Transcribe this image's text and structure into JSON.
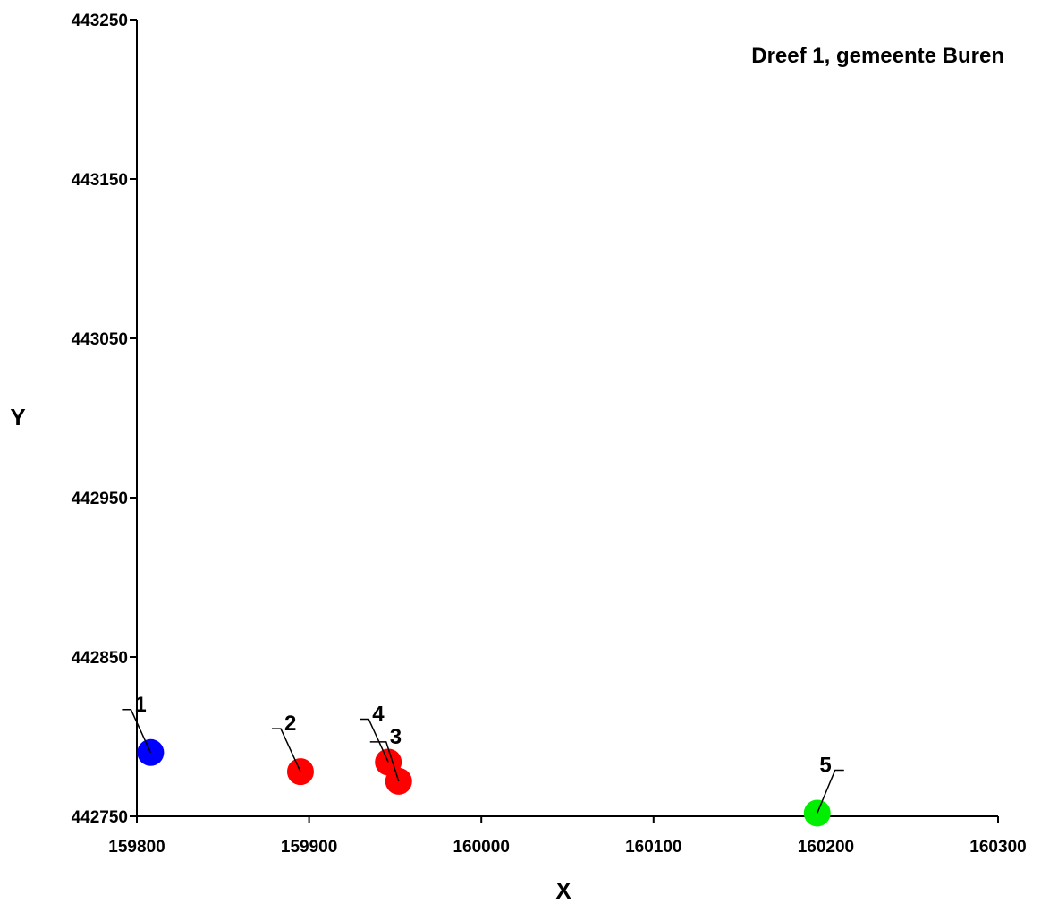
{
  "chart_data": {
    "type": "scatter",
    "title": "Dreef 1, gemeente Buren",
    "xlabel": "X",
    "ylabel": "Y",
    "xlim": [
      159800,
      160300
    ],
    "ylim": [
      442750,
      443250
    ],
    "xticks": [
      159800,
      159900,
      160000,
      160100,
      160200,
      160300
    ],
    "yticks": [
      442750,
      442850,
      442950,
      443050,
      443150,
      443250
    ],
    "x_tick_labels": [
      "159800",
      "159900",
      "160000",
      "160100",
      "160200",
      "160300"
    ],
    "y_tick_labels": [
      "442750",
      "442850",
      "442950",
      "443050",
      "443150",
      "443250"
    ],
    "grid": false,
    "points": [
      {
        "label": "1",
        "x": 159808,
        "y": 442790,
        "color": "#0000ff"
      },
      {
        "label": "2",
        "x": 159895,
        "y": 442778,
        "color": "#ff0000"
      },
      {
        "label": "4",
        "x": 159946,
        "y": 442784,
        "color": "#ff0000"
      },
      {
        "label": "3",
        "x": 159952,
        "y": 442772,
        "color": "#ff0000"
      },
      {
        "label": "5",
        "x": 160195,
        "y": 442752,
        "color": "#00ee00"
      }
    ]
  }
}
